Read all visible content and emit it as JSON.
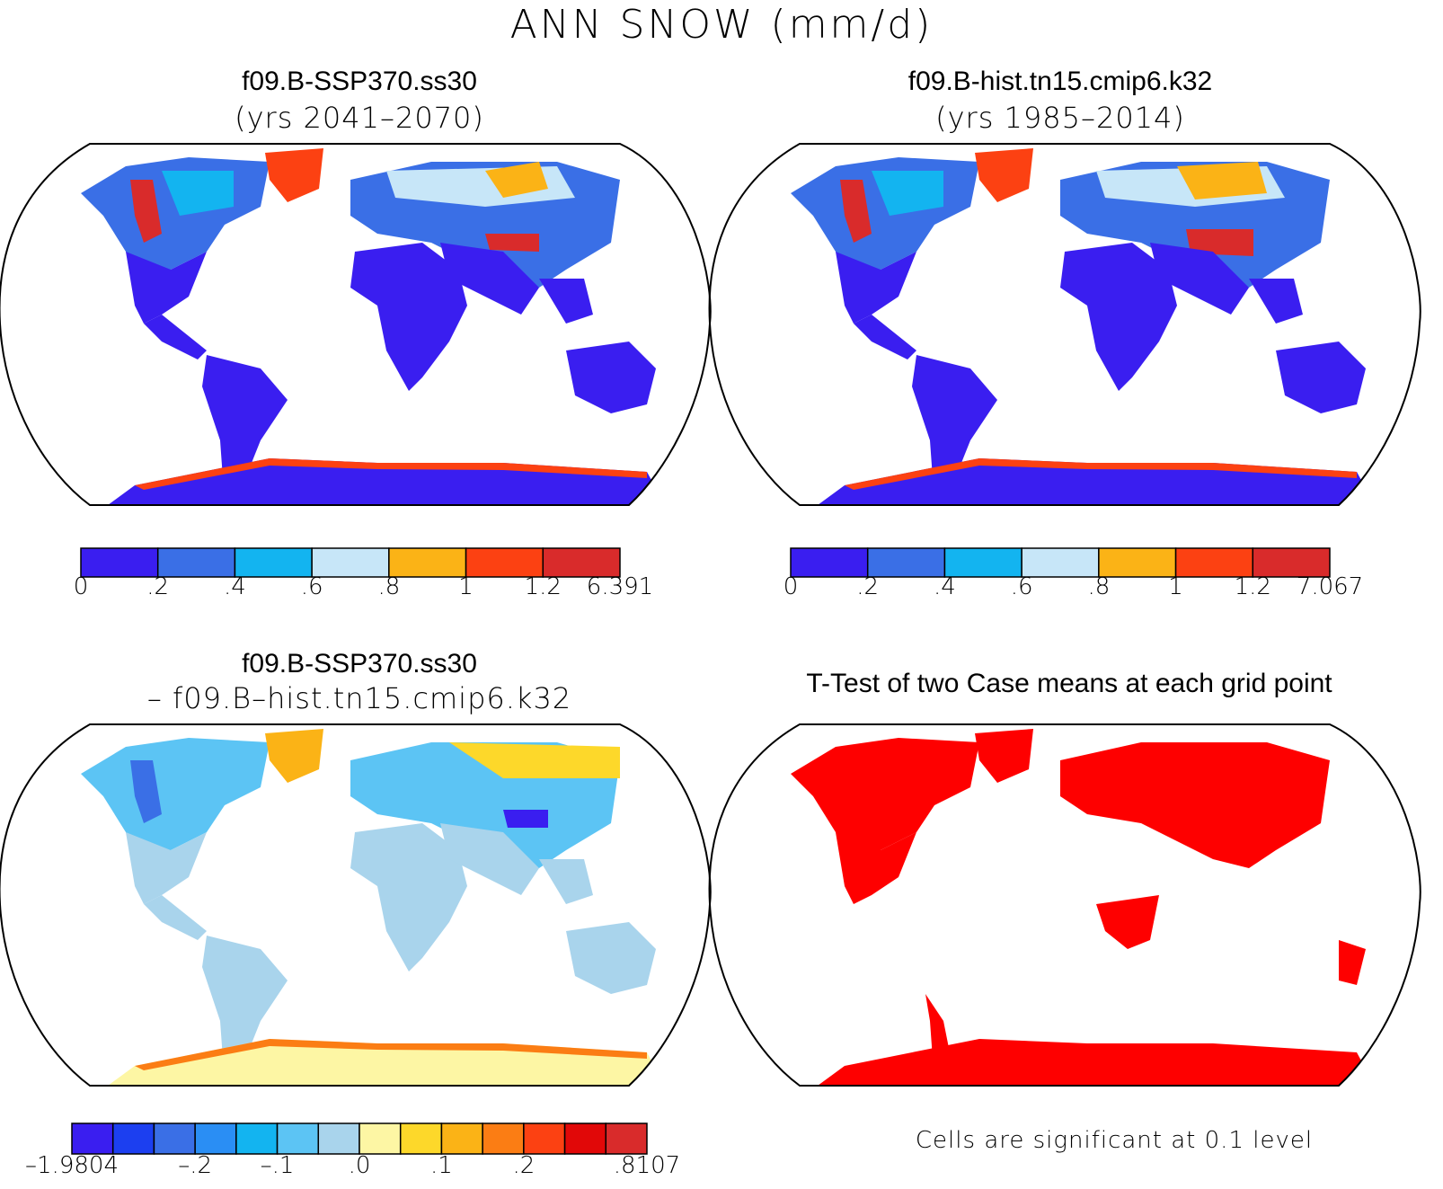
{
  "figure": {
    "title": "ANN SNOW (mm/d)"
  },
  "panels": [
    {
      "id": "top-left",
      "case_name": "f09.B-SSP370.ss30",
      "case_sub": "(yrs 2041–2070)",
      "colorbar": {
        "colors": [
          "#3a1ef0",
          "#3a6fe6",
          "#13b4f0",
          "#c7e6f8",
          "#fbb316",
          "#fc4112",
          "#d92b2b"
        ],
        "labels": [
          "0",
          ".2",
          ".4",
          ".6",
          ".8",
          "1",
          "1.2",
          "6.391"
        ]
      }
    },
    {
      "id": "top-right",
      "case_name": "f09.B-hist.tn15.cmip6.k32",
      "case_sub": "(yrs 1985–2014)",
      "colorbar": {
        "colors": [
          "#3a1ef0",
          "#3a6fe6",
          "#13b4f0",
          "#c7e6f8",
          "#fbb316",
          "#fc4112",
          "#d92b2b"
        ],
        "labels": [
          "0",
          ".2",
          ".4",
          ".6",
          ".8",
          "1",
          "1.2",
          "7.067"
        ]
      }
    },
    {
      "id": "bottom-left",
      "case_name": "f09.B-SSP370.ss30",
      "case_sub": "– f09.B–hist.tn15.cmip6.k32",
      "colorbar": {
        "colors": [
          "#3a1ef0",
          "#1c3ff0",
          "#3a6fe6",
          "#2a8ef4",
          "#13b4f0",
          "#5cc4f4",
          "#a9d4ec",
          "#fdf6a4",
          "#fdd82a",
          "#fbb316",
          "#fb7d14",
          "#fc4112",
          "#e10808",
          "#d92b2b"
        ],
        "labels": [
          "–1.9804",
          "–.2",
          "–.1",
          ".0",
          ".1",
          ".2",
          ".8107"
        ]
      }
    },
    {
      "id": "bottom-right",
      "case_name": "T-Test of two Case means at each grid point",
      "note": "Cells are significant at 0.1 level"
    }
  ]
}
